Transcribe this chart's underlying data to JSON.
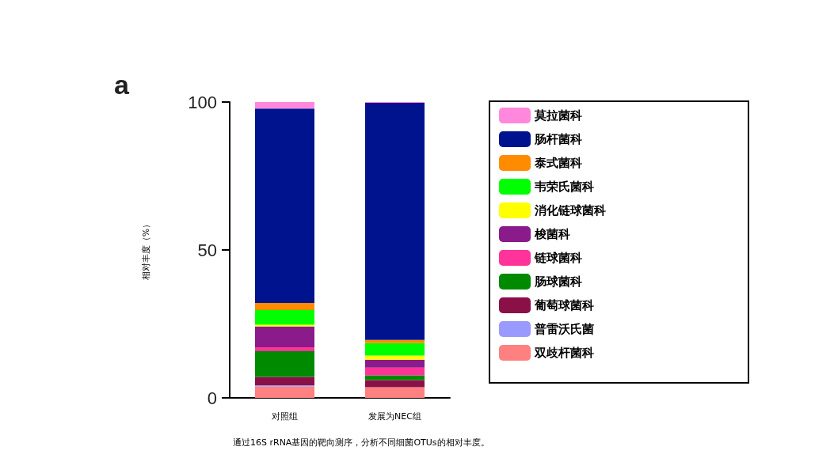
{
  "chart_data": {
    "type": "bar",
    "stacked": true,
    "ylabel": "相对丰度（%）",
    "categories": [
      "对照组",
      "发展为NEC组"
    ],
    "ylim": [
      0,
      100
    ],
    "yticks": [
      0,
      50,
      100
    ],
    "grid": false,
    "legend": "right",
    "annotations": [
      "a",
      "通过16S rRNA基因的靶向测序，分析不同细菌OTUs的相对丰度。"
    ],
    "series": [
      {
        "name": "双歧杆菌科",
        "color": "#ff8080",
        "values": [
          3.8,
          3.6
        ]
      },
      {
        "name": "普雷沃氏菌",
        "color": "#9999ff",
        "values": [
          0.4,
          null
        ]
      },
      {
        "name": "葡萄球菌科",
        "color": "#8b1047",
        "values": [
          2.9,
          2.4
        ]
      },
      {
        "name": "肠球菌科",
        "color": "#008a00",
        "values": [
          8.7,
          1.6
        ]
      },
      {
        "name": "链球菌科",
        "color": "#ff3399",
        "values": [
          1.3,
          2.6
        ]
      },
      {
        "name": "梭菌科",
        "color": "#8b1a8b",
        "values": [
          7.0,
          2.7
        ]
      },
      {
        "name": "消化链球菌科",
        "color": "#ffff00",
        "values": [
          0.6,
          1.4
        ]
      },
      {
        "name": "韦荣氏菌科",
        "color": "#00ff00",
        "values": [
          5.0,
          4.2
        ]
      },
      {
        "name": "泰式菌科",
        "color": "#ff8c00",
        "values": [
          2.4,
          1.1
        ]
      },
      {
        "name": "肠杆菌科",
        "color": "#00138f",
        "values": [
          65.7,
          80.1
        ]
      },
      {
        "name": "莫拉菌科",
        "color": "#ff88dd",
        "values": [
          2.2,
          0.3
        ]
      }
    ]
  }
}
